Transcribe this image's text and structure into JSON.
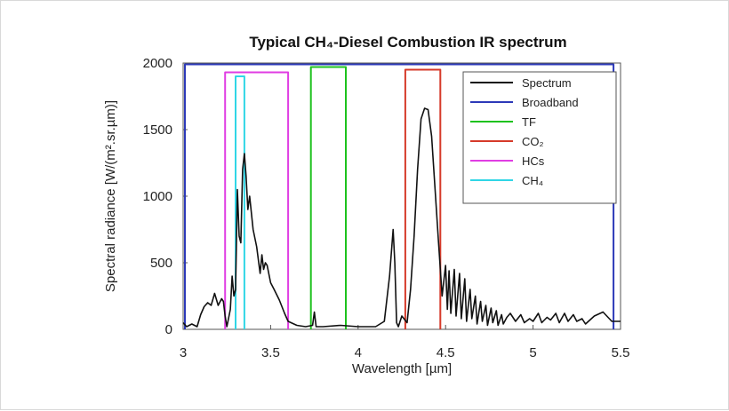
{
  "chart_data": {
    "type": "line",
    "title": "Typical CH₄-Diesel Combustion IR spectrum",
    "xlabel": "Wavelength [µm]",
    "ylabel": "Spectral radiance [W/(m².sr.µm)]",
    "xlim": [
      3,
      5.5
    ],
    "ylim": [
      0,
      2000
    ],
    "x_ticks": [
      "3",
      "3.5",
      "4",
      "4.5",
      "5",
      "5.5"
    ],
    "y_ticks": [
      "0",
      "500",
      "1000",
      "1500",
      "2000"
    ],
    "legend_position": "top-right",
    "series": [
      {
        "name": "Spectrum",
        "color": "#111111",
        "x": [
          3.0,
          3.02,
          3.05,
          3.08,
          3.1,
          3.12,
          3.14,
          3.16,
          3.18,
          3.2,
          3.22,
          3.23,
          3.24,
          3.25,
          3.27,
          3.28,
          3.29,
          3.3,
          3.31,
          3.32,
          3.33,
          3.34,
          3.35,
          3.36,
          3.37,
          3.38,
          3.4,
          3.42,
          3.44,
          3.45,
          3.46,
          3.47,
          3.48,
          3.5,
          3.52,
          3.55,
          3.58,
          3.6,
          3.65,
          3.7,
          3.74,
          3.75,
          3.76,
          3.8,
          3.9,
          4.0,
          4.1,
          4.15,
          4.18,
          4.2,
          4.21,
          4.22,
          4.23,
          4.25,
          4.28,
          4.3,
          4.32,
          4.34,
          4.36,
          4.38,
          4.4,
          4.42,
          4.44,
          4.46,
          4.48,
          4.5,
          4.51,
          4.52,
          4.53,
          4.55,
          4.56,
          4.58,
          4.59,
          4.61,
          4.62,
          4.64,
          4.65,
          4.67,
          4.68,
          4.7,
          4.71,
          4.73,
          4.74,
          4.76,
          4.77,
          4.79,
          4.8,
          4.82,
          4.83,
          4.85,
          4.87,
          4.9,
          4.93,
          4.95,
          4.98,
          5.0,
          5.03,
          5.05,
          5.08,
          5.1,
          5.13,
          5.15,
          5.18,
          5.2,
          5.23,
          5.25,
          5.28,
          5.3,
          5.35,
          5.4,
          5.45,
          5.5
        ],
        "y": [
          50,
          20,
          40,
          20,
          110,
          170,
          200,
          180,
          270,
          180,
          230,
          210,
          100,
          20,
          150,
          400,
          250,
          300,
          1050,
          700,
          650,
          1200,
          1320,
          1150,
          900,
          1000,
          750,
          620,
          420,
          560,
          450,
          500,
          480,
          350,
          300,
          220,
          120,
          60,
          30,
          20,
          30,
          130,
          20,
          20,
          30,
          20,
          20,
          60,
          400,
          750,
          500,
          50,
          20,
          100,
          50,
          300,
          700,
          1200,
          1580,
          1660,
          1650,
          1450,
          1050,
          650,
          250,
          480,
          150,
          440,
          120,
          450,
          100,
          420,
          80,
          380,
          60,
          300,
          80,
          250,
          40,
          210,
          60,
          180,
          30,
          160,
          50,
          140,
          30,
          110,
          40,
          90,
          120,
          60,
          110,
          50,
          80,
          60,
          120,
          50,
          90,
          70,
          120,
          50,
          120,
          60,
          110,
          60,
          80,
          40,
          100,
          130,
          60,
          60
        ]
      },
      {
        "name": "Broadband",
        "color": "#2c39b8",
        "x": [
          3.01,
          3.01,
          5.46,
          5.46
        ],
        "y": [
          0,
          1990,
          1990,
          0
        ]
      },
      {
        "name": "TF",
        "color": "#1ec21e",
        "x": [
          3.73,
          3.73,
          3.93,
          3.93
        ],
        "y": [
          0,
          1970,
          1970,
          0
        ]
      },
      {
        "name": "CO₂",
        "color": "#d63a2a",
        "x": [
          4.27,
          4.27,
          4.47,
          4.47
        ],
        "y": [
          0,
          1950,
          1950,
          0
        ]
      },
      {
        "name": "HCs",
        "color": "#e03ee3",
        "x": [
          3.24,
          3.24,
          3.6,
          3.6
        ],
        "y": [
          0,
          1930,
          1930,
          0
        ]
      },
      {
        "name": "CH₄",
        "color": "#30d6e6",
        "x": [
          3.3,
          3.3,
          3.35,
          3.35
        ],
        "y": [
          0,
          1900,
          1900,
          0
        ]
      }
    ]
  }
}
